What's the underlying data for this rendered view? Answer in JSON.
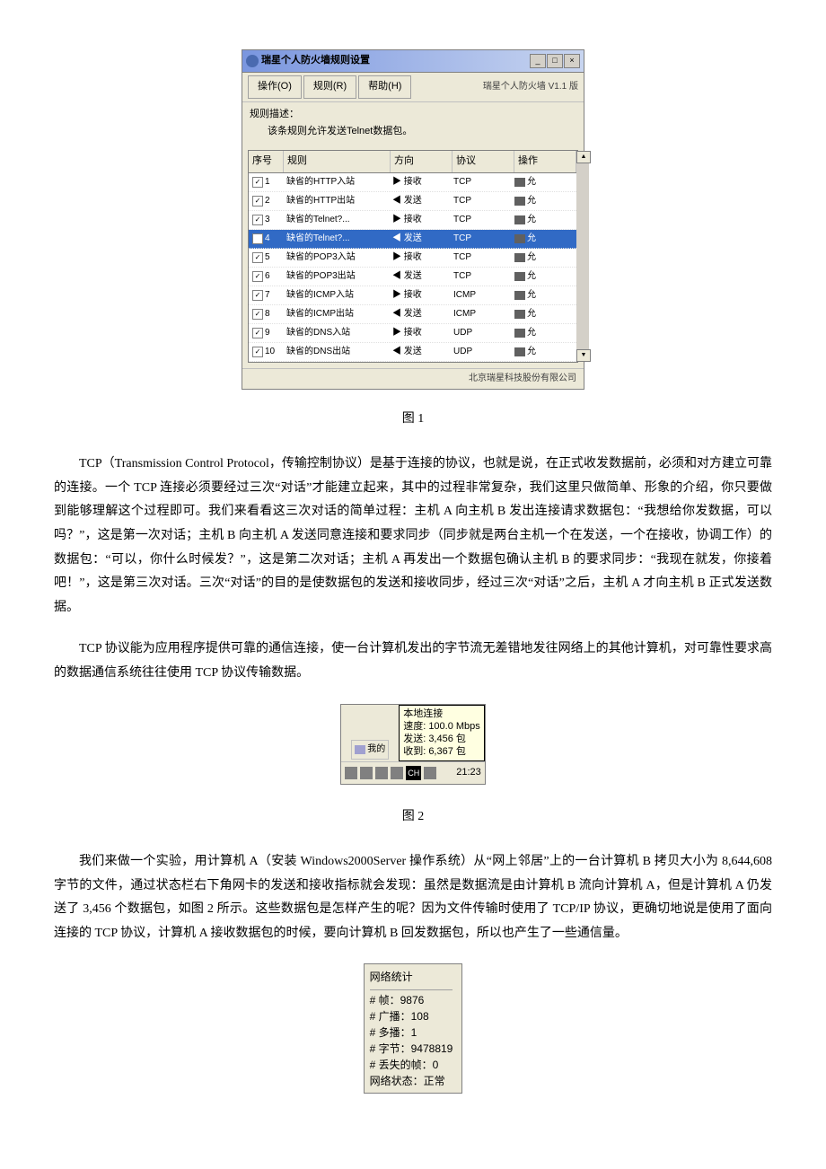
{
  "figure1": {
    "title": "瑞星个人防火墙规则设置",
    "menu": {
      "op": "操作(O)",
      "rule": "规则(R)",
      "help": "帮助(H)",
      "version": "瑞星个人防火墙 V1.1 版"
    },
    "desc_label": "规则描述：",
    "desc_text": "该条规则允许发送Telnet数据包。",
    "headers": {
      "idx": "序号",
      "rule": "规则",
      "dir": "方向",
      "proto": "协议",
      "op": "操作"
    },
    "rows": [
      {
        "n": "1",
        "name": "缺省的HTTP入站",
        "dir": "▶ 接收",
        "proto": "TCP",
        "op": "允"
      },
      {
        "n": "2",
        "name": "缺省的HTTP出站",
        "dir": "◀ 发送",
        "proto": "TCP",
        "op": "允"
      },
      {
        "n": "3",
        "name": "缺省的Telnet?...",
        "dir": "▶ 接收",
        "proto": "TCP",
        "op": "允"
      },
      {
        "n": "4",
        "name": "缺省的Telnet?...",
        "dir": "◀ 发送",
        "proto": "TCP",
        "op": "允",
        "sel": true
      },
      {
        "n": "5",
        "name": "缺省的POP3入站",
        "dir": "▶ 接收",
        "proto": "TCP",
        "op": "允"
      },
      {
        "n": "6",
        "name": "缺省的POP3出站",
        "dir": "◀ 发送",
        "proto": "TCP",
        "op": "允"
      },
      {
        "n": "7",
        "name": "缺省的ICMP入站",
        "dir": "▶ 接收",
        "proto": "ICMP",
        "op": "允"
      },
      {
        "n": "8",
        "name": "缺省的ICMP出站",
        "dir": "◀ 发送",
        "proto": "ICMP",
        "op": "允"
      },
      {
        "n": "9",
        "name": "缺省的DNS入站",
        "dir": "▶ 接收",
        "proto": "UDP",
        "op": "允"
      },
      {
        "n": "10",
        "name": "缺省的DNS出站",
        "dir": "◀ 发送",
        "proto": "UDP",
        "op": "允"
      }
    ],
    "footer": "北京瑞星科技股份有限公司",
    "caption": "图 1"
  },
  "para1": "TCP（Transmission Control Protocol，传输控制协议）是基于连接的协议，也就是说，在正式收发数据前，必须和对方建立可靠的连接。一个 TCP 连接必须要经过三次“对话”才能建立起来，其中的过程非常复杂，我们这里只做简单、形象的介绍，你只要做到能够理解这个过程即可。我们来看看这三次对话的简单过程：主机 A 向主机 B 发出连接请求数据包：“我想给你发数据，可以吗？”，这是第一次对话；主机 B 向主机 A 发送同意连接和要求同步（同步就是两台主机一个在发送，一个在接收，协调工作）的数据包：“可以，你什么时候发？”，这是第二次对话；主机 A 再发出一个数据包确认主机 B 的要求同步：“我现在就发，你接着吧！”，这是第三次对话。三次“对话”的目的是使数据包的发送和接收同步，经过三次“对话”之后，主机 A 才向主机 B 正式发送数据。",
  "para2": "TCP 协议能为应用程序提供可靠的通信连接，使一台计算机发出的字节流无差错地发往网络上的其他计算机，对可靠性要求高的数据通信系统往往使用 TCP 协议传输数据。",
  "figure2": {
    "my": "我的",
    "conn": "本地连接",
    "speed": "速度: 100.0 Mbps",
    "sent": "发送: 3,456 包",
    "recv": "收到: 6,367 包",
    "time": "21:23",
    "ch": "CH",
    "caption": "图 2"
  },
  "para3": "我们来做一个实验，用计算机 A（安装 Windows2000Server 操作系统）从“网上邻居”上的一台计算机 B 拷贝大小为 8,644,608 字节的文件，通过状态栏右下角网卡的发送和接收指标就会发现：虽然是数据流是由计算机 B 流向计算机 A，但是计算机 A 仍发送了 3,456 个数据包，如图 2 所示。这些数据包是怎样产生的呢？因为文件传输时使用了 TCP/IP 协议，更确切地说是使用了面向连接的 TCP 协议，计算机 A 接收数据包的时候，要向计算机 B 回发数据包，所以也产生了一些通信量。",
  "figure3": {
    "title": "网络统计",
    "lines": [
      "# 帧：9876",
      "# 广播：108",
      "# 多播：1",
      "# 字节：9478819",
      "# 丢失的帧：0",
      "网络状态：正常"
    ]
  }
}
